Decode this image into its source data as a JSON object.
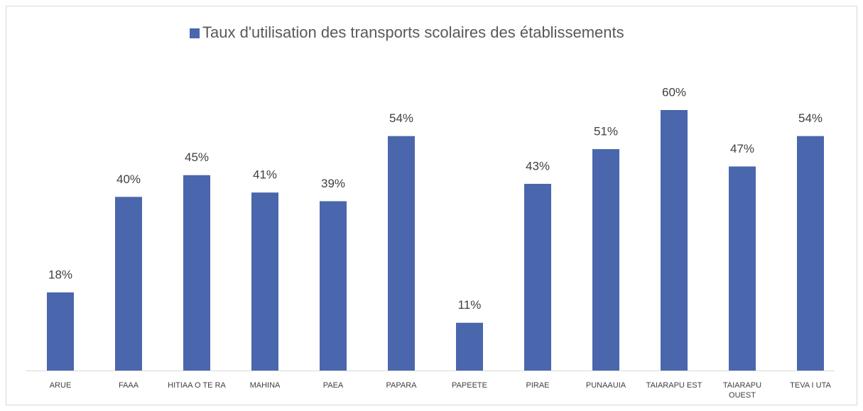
{
  "chart_data": {
    "type": "bar",
    "categories": [
      "ARUE",
      "FAAA",
      "HITIAA O TE RA",
      "MAHINA",
      "PAEA",
      "PAPARA",
      "PAPEETE",
      "PIRAE",
      "PUNAAUIA",
      "TAIARAPU EST",
      "TAIARAPU OUEST",
      "TEVA I UTA"
    ],
    "series": [
      {
        "name": "Taux d'utilisation des transports scolaires des établissements",
        "color": "#4a66ac",
        "values": [
          18,
          40,
          45,
          41,
          39,
          54,
          11,
          43,
          51,
          60,
          47,
          54
        ],
        "value_labels": [
          "18%",
          "40%",
          "45%",
          "41%",
          "39%",
          "54%",
          "11%",
          "43%",
          "51%",
          "60%",
          "47%",
          "54%"
        ]
      }
    ],
    "ylim": [
      0,
      60
    ],
    "legend": "top"
  }
}
